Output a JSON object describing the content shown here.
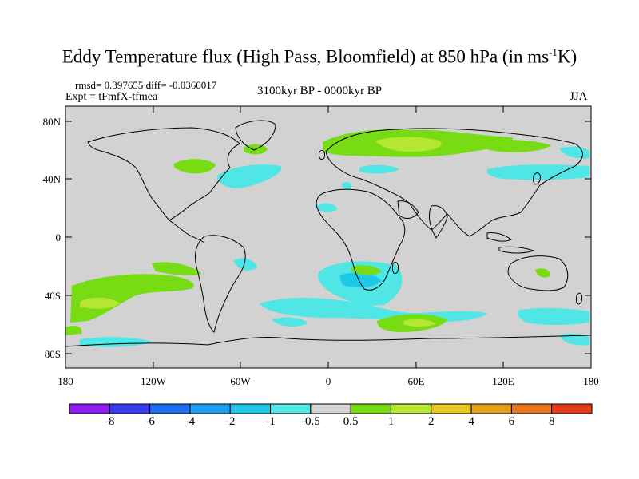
{
  "title_main": "Eddy Temperature flux (High Pass, Bloomfield) at 850 hPa (in ms",
  "title_sup": "-1",
  "title_end": "K)",
  "stats": "rmsd= 0.397655  diff= -0.0360017",
  "expt": "Expt = tFmfX-tfmea",
  "period": "3100kyr BP - 0000kyr BP",
  "season": "JJA",
  "lat_ticks": [
    "80N",
    "40N",
    "0",
    "40S",
    "80S"
  ],
  "lon_ticks": [
    "180",
    "120W",
    "60W",
    "0",
    "60E",
    "120E",
    "180"
  ],
  "colorbar": {
    "labels": [
      "-8",
      "-6",
      "-4",
      "-2",
      "-1",
      "-0.5",
      "0.5",
      "1",
      "2",
      "4",
      "6",
      "8"
    ],
    "colors": [
      "#8c1ef0",
      "#3c3cf0",
      "#1e6ef0",
      "#1ea0f0",
      "#1ec8e6",
      "#50e6e6",
      "#d2d2d2",
      "#78dc14",
      "#b4e632",
      "#e6c81e",
      "#e6a01e",
      "#e6781e",
      "#e63c1e"
    ]
  },
  "colors": {
    "land_ocean_bg": "#d2d2d2",
    "positive_1": "#78dc14",
    "positive_2": "#b4e632",
    "negative_1": "#50e6e6",
    "negative_2": "#1ec8e6"
  }
}
